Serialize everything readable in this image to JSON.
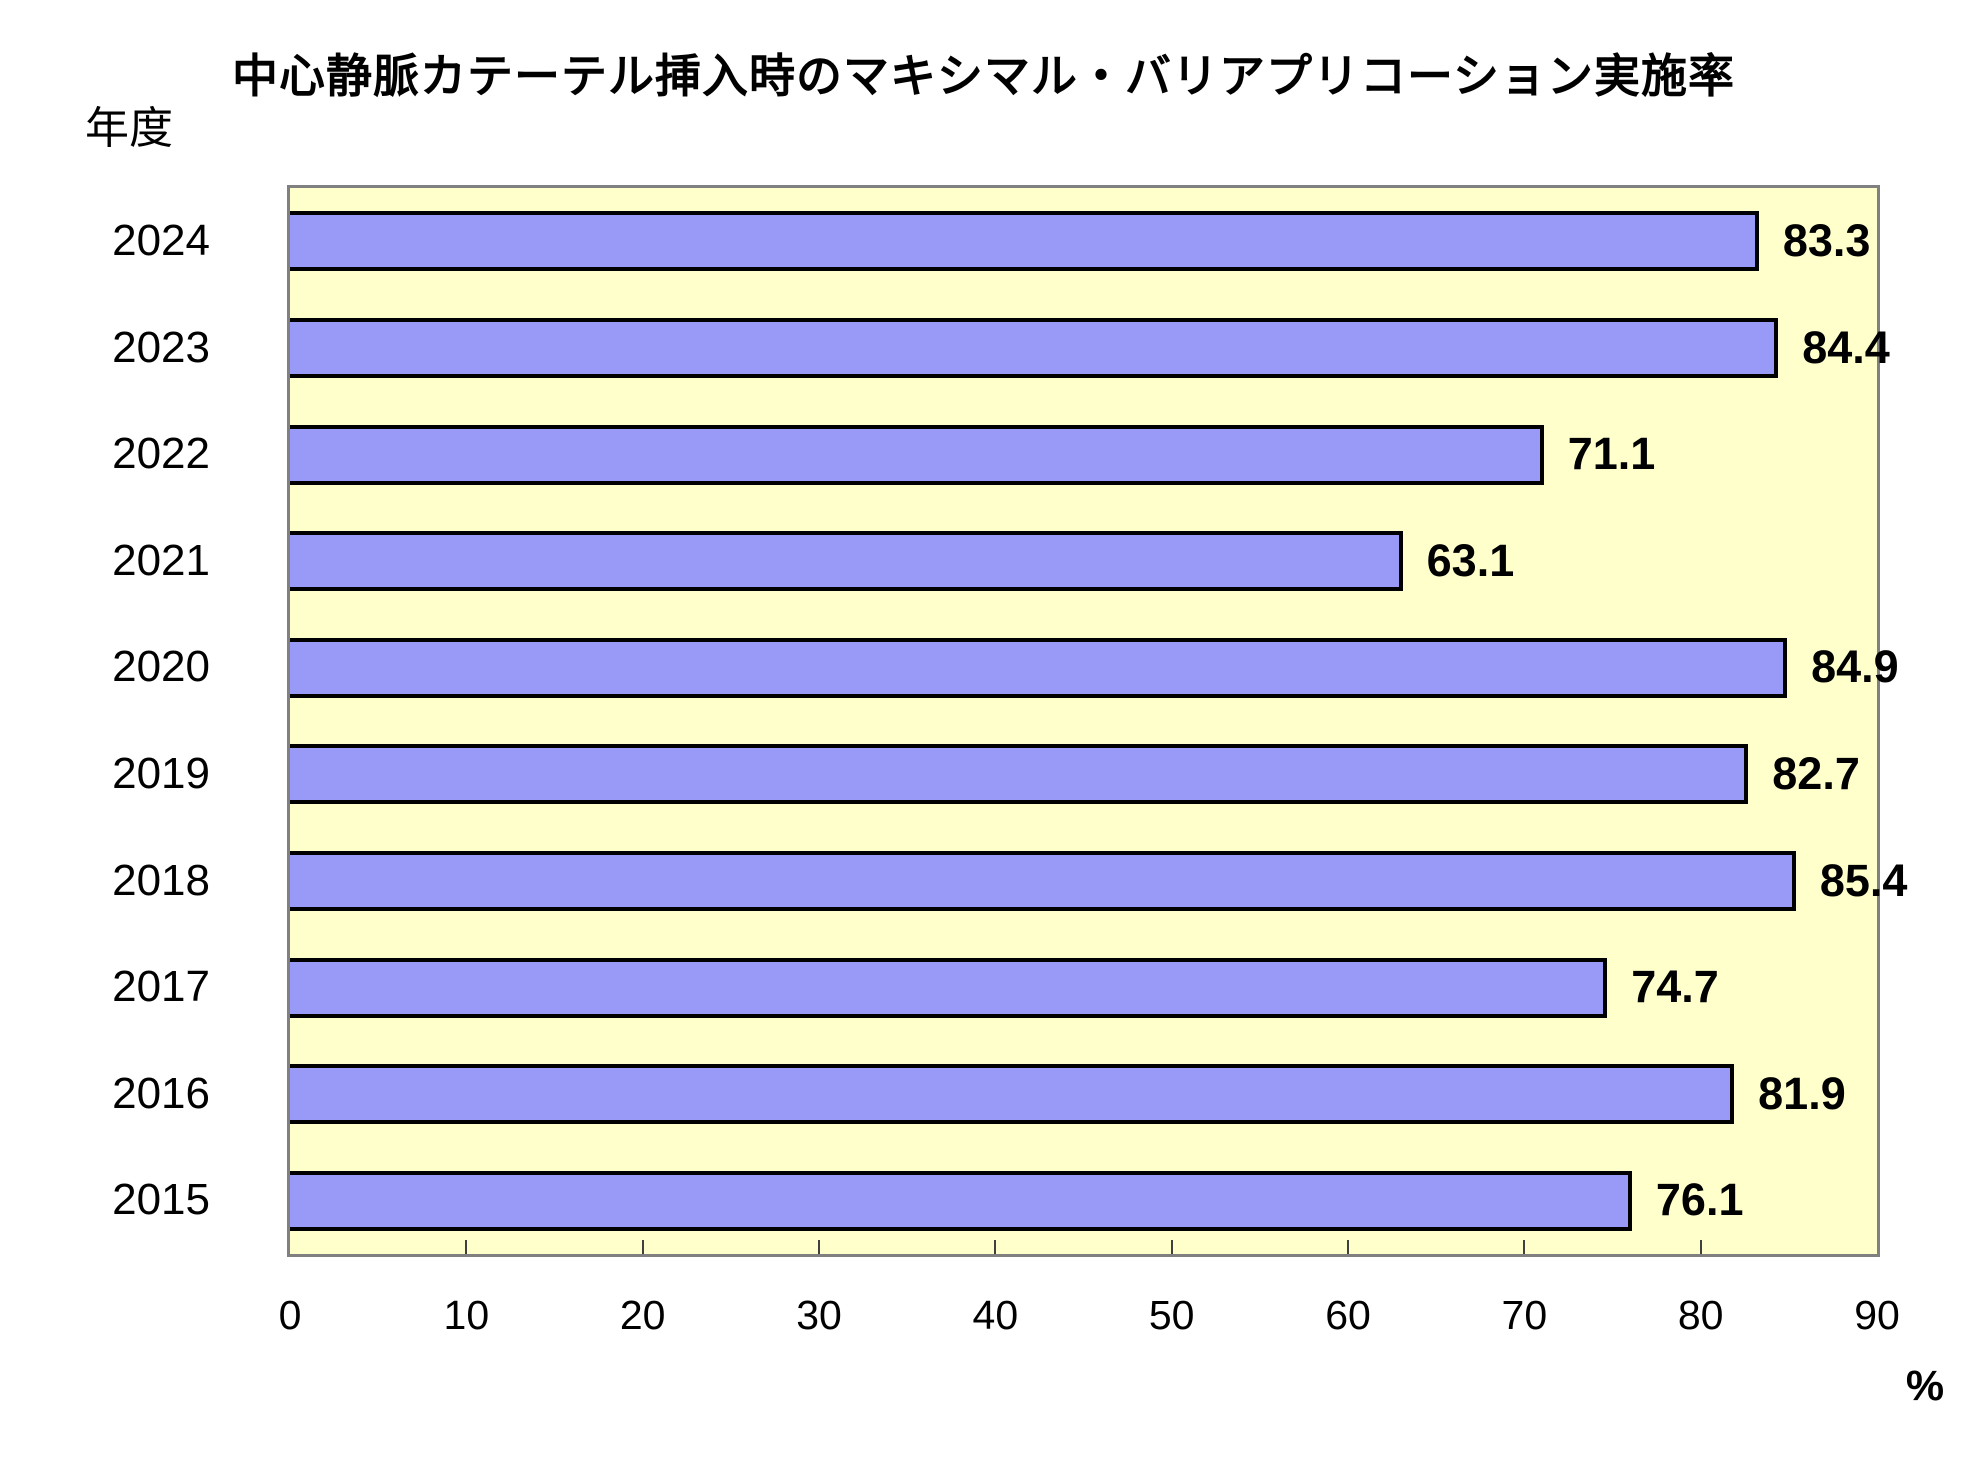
{
  "title": "中心静脈カテーテル挿入時のマキシマル・バリアプリコーション実施率",
  "y_axis_title": "年度",
  "unit_label": "%",
  "colors": {
    "bar_fill": "#9999F8",
    "bar_border": "#000000",
    "plot_background": "#FFFFCC",
    "plot_border": "#808080",
    "page_background": "#FFFFFF",
    "text": "#000000"
  },
  "chart_data": {
    "type": "bar",
    "orientation": "horizontal",
    "title": "中心静脈カテーテル挿入時のマキシマル・バリアプリコーション実施率",
    "ylabel": "年度",
    "xlabel": "%",
    "categories": [
      "2024",
      "2023",
      "2022",
      "2021",
      "2020",
      "2019",
      "2018",
      "2017",
      "2016",
      "2015"
    ],
    "values": [
      83.3,
      84.4,
      71.1,
      63.1,
      84.9,
      82.7,
      85.4,
      74.7,
      81.9,
      76.1
    ],
    "value_labels": [
      "83.3",
      "84.4",
      "71.1",
      "63.1",
      "84.9",
      "82.7",
      "85.4",
      "74.7",
      "81.9",
      "76.1"
    ],
    "xlim": [
      0,
      90
    ],
    "x_ticks": [
      0,
      10,
      20,
      30,
      40,
      50,
      60,
      70,
      80,
      90
    ],
    "grid": false,
    "legend": false,
    "value_labels_position": "right-of-bar"
  }
}
